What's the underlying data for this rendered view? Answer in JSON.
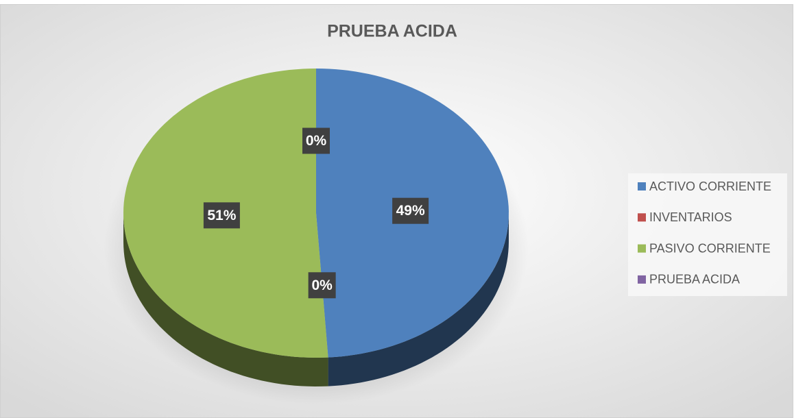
{
  "chart_data": {
    "type": "pie3d",
    "title": "PRUEBA ACIDA",
    "categories": [
      "ACTIVO CORRIENTE",
      "INVENTARIOS",
      "PASIVO CORRIENTE",
      "PRUEBA ACIDA"
    ],
    "values": [
      49,
      0,
      51,
      0
    ],
    "value_labels": [
      "49%",
      "0%",
      "51%",
      "0%"
    ],
    "colors": [
      "#4f81bd",
      "#c0504d",
      "#9bbb59",
      "#8064a2"
    ],
    "legend": "right"
  }
}
